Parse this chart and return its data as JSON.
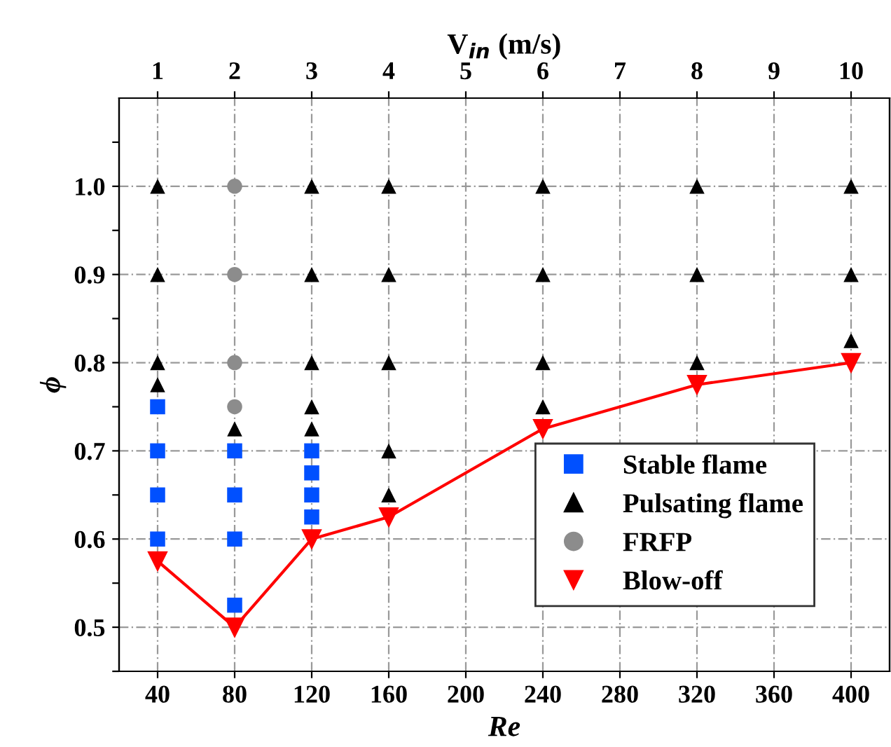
{
  "chart_data": {
    "type": "scatter",
    "xlabel": "Re",
    "ylabel": "ϕ",
    "x2label": "V$_{in}$ (m/s)",
    "xlim": [
      20,
      420
    ],
    "xticks": [
      40,
      80,
      120,
      160,
      200,
      240,
      280,
      320,
      360,
      400
    ],
    "x2lim": [
      0.5,
      10.5
    ],
    "x2ticks": [
      1,
      2,
      3,
      4,
      5,
      6,
      7,
      8,
      9,
      10
    ],
    "ylim": [
      0.45,
      1.1
    ],
    "yticks": [
      {
        "value": 0.45,
        "label": null
      },
      0.5,
      {
        "value": 0.55,
        "label": null
      },
      0.6,
      {
        "value": 0.65,
        "label": null
      },
      0.7,
      {
        "value": 0.75,
        "label": null
      },
      0.8,
      {
        "value": 0.85,
        "label": null
      },
      0.9,
      {
        "value": 0.95,
        "label": null
      },
      {
        "value": 1.0,
        "label": "1.0"
      },
      {
        "value": 1.05,
        "label": null
      }
    ],
    "grid": true,
    "legend": "bottom right",
    "series": [
      {
        "name": "Stable flame",
        "color": "#0050ff",
        "marker": "square",
        "x": [
          40,
          40,
          40,
          40,
          80,
          80,
          80,
          80,
          120,
          120,
          120,
          120
        ],
        "values": [
          0.6,
          0.65,
          0.7,
          0.75,
          0.525,
          0.6,
          0.65,
          0.7,
          0.625,
          0.65,
          0.675,
          0.7
        ]
      },
      {
        "name": "Pulsating flame",
        "color": "#000000",
        "marker": "triangle",
        "x": [
          40,
          40,
          40,
          40,
          80,
          120,
          120,
          120,
          120,
          120,
          160,
          160,
          160,
          160,
          160,
          240,
          240,
          240,
          240,
          320,
          320,
          320,
          400,
          400,
          400
        ],
        "values": [
          0.775,
          0.8,
          0.9,
          1.0,
          0.725,
          0.725,
          0.75,
          0.8,
          0.9,
          1.0,
          0.65,
          0.7,
          0.8,
          0.9,
          1.0,
          0.75,
          0.8,
          0.9,
          1.0,
          0.8,
          0.9,
          1.0,
          0.825,
          0.9,
          1.0
        ]
      },
      {
        "name": "FRFP",
        "color": "#8c8c8c",
        "marker": "circle",
        "x": [
          80,
          80,
          80,
          80
        ],
        "values": [
          0.75,
          0.8,
          0.9,
          1.0
        ]
      },
      {
        "name": "Blow-off",
        "type": "line",
        "color": "#ff0000",
        "marker": "triangle_down",
        "x": [
          40,
          80,
          120,
          160,
          240,
          320,
          400
        ],
        "values": [
          0.575,
          0.5,
          0.6,
          0.625,
          0.725,
          0.775,
          0.8
        ]
      }
    ]
  }
}
